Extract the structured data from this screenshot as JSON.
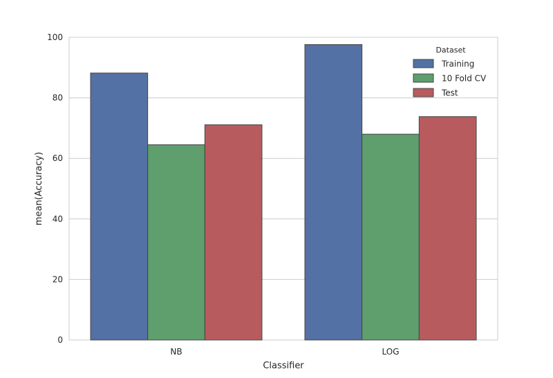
{
  "chart_data": {
    "type": "bar",
    "categories": [
      "NB",
      "LOG"
    ],
    "series": [
      {
        "name": "Training",
        "values": [
          88.2,
          97.6
        ],
        "color": "#5471a5"
      },
      {
        "name": "10 Fold CV",
        "values": [
          64.5,
          68.0
        ],
        "color": "#5e9f6d"
      },
      {
        "name": "Test",
        "values": [
          71.1,
          73.8
        ],
        "color": "#b85b5e"
      }
    ],
    "xlabel": "Classifier",
    "ylabel": "mean(Accuracy)",
    "ylim": [
      0,
      100
    ],
    "yticks": [
      "0",
      "20",
      "40",
      "60",
      "80",
      "100"
    ],
    "grid": true,
    "legend": {
      "title": "Dataset",
      "position": "top-right"
    }
  }
}
